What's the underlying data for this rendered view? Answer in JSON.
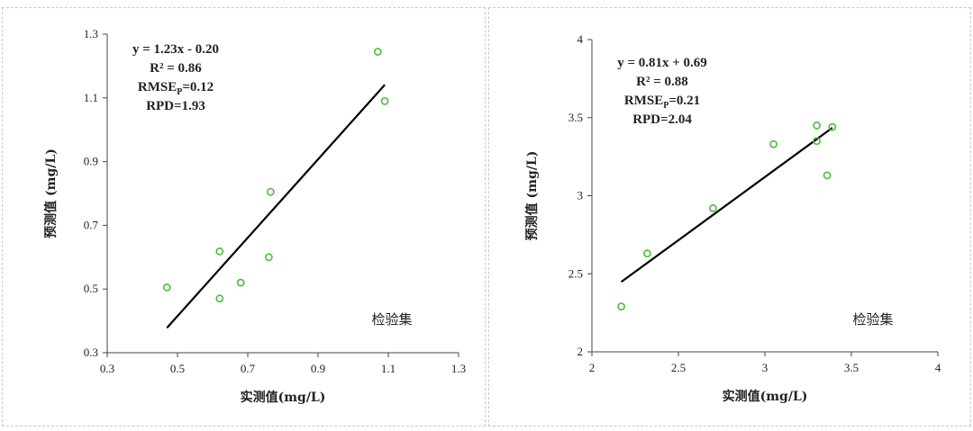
{
  "chart_data": [
    {
      "type": "scatter",
      "xlabel": "实测值(mg/L)",
      "ylabel": "预测值 (mg/L)",
      "xlim": [
        0.3,
        1.3
      ],
      "ylim": [
        0.3,
        1.3
      ],
      "xticks": [
        0.3,
        0.5,
        0.7,
        0.9,
        1.1,
        1.3
      ],
      "yticks": [
        0.3,
        0.5,
        0.7,
        0.9,
        1.1,
        1.3
      ],
      "xtick_labels": [
        "0.3",
        "0.5",
        "0.7",
        "0.9",
        "1.1",
        "1.3"
      ],
      "ytick_labels": [
        "0.3",
        "0.5",
        "0.7",
        "0.9",
        "1.1",
        "1.3"
      ],
      "points": [
        {
          "x": 0.47,
          "y": 0.505
        },
        {
          "x": 0.62,
          "y": 0.618
        },
        {
          "x": 0.62,
          "y": 0.47
        },
        {
          "x": 0.68,
          "y": 0.52
        },
        {
          "x": 0.76,
          "y": 0.6
        },
        {
          "x": 0.765,
          "y": 0.805
        },
        {
          "x": 1.07,
          "y": 1.245
        },
        {
          "x": 1.09,
          "y": 1.09
        }
      ],
      "fit_line": {
        "x": [
          0.47,
          1.09
        ],
        "y": [
          0.378,
          1.141
        ]
      },
      "annotations": [
        "y = 1.23x - 0.20",
        "R² = 0.86",
        "RMSEP=0.12",
        "RPD=1.93"
      ],
      "set_label": "检验集",
      "marker_color": "#4cbb3c",
      "line_color": "#000000",
      "grid": false
    },
    {
      "type": "scatter",
      "xlabel": "实测值(mg/L)",
      "ylabel": "预测值 (mg/L)",
      "xlim": [
        2,
        4
      ],
      "ylim": [
        2,
        4
      ],
      "xticks": [
        2,
        2.5,
        3,
        3.5,
        4
      ],
      "yticks": [
        2,
        2.5,
        3,
        3.5,
        4
      ],
      "xtick_labels": [
        "2",
        "2.5",
        "3",
        "3.5",
        "4"
      ],
      "ytick_labels": [
        "2",
        "2.5",
        "3",
        "3.5",
        "4"
      ],
      "points": [
        {
          "x": 2.17,
          "y": 2.29
        },
        {
          "x": 2.32,
          "y": 2.63
        },
        {
          "x": 2.7,
          "y": 2.92
        },
        {
          "x": 3.05,
          "y": 3.33
        },
        {
          "x": 3.3,
          "y": 3.45
        },
        {
          "x": 3.3,
          "y": 3.35
        },
        {
          "x": 3.39,
          "y": 3.44
        },
        {
          "x": 3.36,
          "y": 3.13
        }
      ],
      "fit_line": {
        "x": [
          2.17,
          3.39
        ],
        "y": [
          2.448,
          3.435
        ]
      },
      "annotations": [
        "y = 0.81x + 0.69",
        "R² = 0.88",
        "RMSEP=0.21",
        "RPD=2.04"
      ],
      "set_label": "检验集",
      "marker_color": "#4cbb3c",
      "line_color": "#000000",
      "grid": false
    }
  ]
}
